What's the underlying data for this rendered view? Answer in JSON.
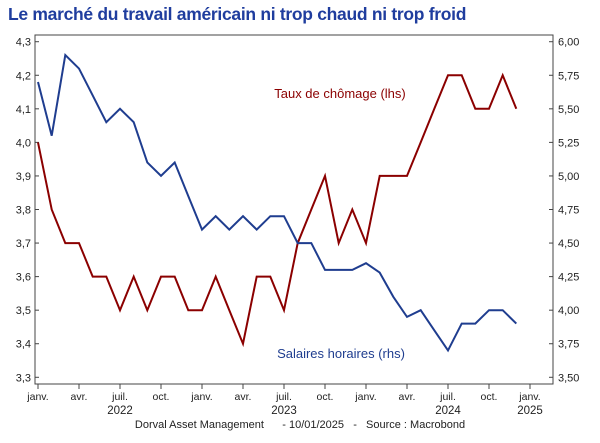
{
  "chart_data": {
    "type": "line",
    "title": "Le marché du travail américain ni trop chaud ni trop froid",
    "source_note": "Dorval Asset Management      - 10/01/2025   -   Source : Macrobond",
    "grid": false,
    "x_ticks": [
      {
        "date": "2022-01",
        "label": "janv.",
        "year": ""
      },
      {
        "date": "2022-04",
        "label": "avr.",
        "year": ""
      },
      {
        "date": "2022-07",
        "label": "juil.",
        "year": "2022"
      },
      {
        "date": "2022-10",
        "label": "oct.",
        "year": ""
      },
      {
        "date": "2023-01",
        "label": "janv.",
        "year": ""
      },
      {
        "date": "2023-04",
        "label": "avr.",
        "year": ""
      },
      {
        "date": "2023-07",
        "label": "juil.",
        "year": "2023"
      },
      {
        "date": "2023-10",
        "label": "oct.",
        "year": ""
      },
      {
        "date": "2024-01",
        "label": "janv.",
        "year": ""
      },
      {
        "date": "2024-04",
        "label": "avr.",
        "year": ""
      },
      {
        "date": "2024-07",
        "label": "juil.",
        "year": "2024"
      },
      {
        "date": "2024-10",
        "label": "oct.",
        "year": ""
      },
      {
        "date": "2025-01",
        "label": "janv.",
        "year": "2025"
      }
    ],
    "y_left": {
      "min": 3.28,
      "max": 4.32,
      "ticks": [
        3.3,
        3.4,
        3.5,
        3.6,
        3.7,
        3.8,
        3.9,
        4.0,
        4.1,
        4.2,
        4.3
      ],
      "labels": [
        "3,3",
        "3,4",
        "3,5",
        "3,6",
        "3,7",
        "3,8",
        "3,9",
        "4,0",
        "4,1",
        "4,2",
        "4,3"
      ]
    },
    "y_right": {
      "min": 3.45,
      "max": 6.05,
      "ticks": [
        3.5,
        3.75,
        4.0,
        4.25,
        4.5,
        4.75,
        5.0,
        5.25,
        5.5,
        5.75,
        6.0
      ],
      "labels": [
        "3,50",
        "3,75",
        "4,00",
        "4,25",
        "4,50",
        "4,75",
        "5,00",
        "5,25",
        "5,50",
        "5,75",
        "6,00"
      ]
    },
    "series": [
      {
        "name": "Taux de chômage (lhs)",
        "axis": "left",
        "color": "#8b0000",
        "x": [
          "2022-01",
          "2022-02",
          "2022-03",
          "2022-04",
          "2022-05",
          "2022-06",
          "2022-07",
          "2022-08",
          "2022-09",
          "2022-10",
          "2022-11",
          "2022-12",
          "2023-01",
          "2023-02",
          "2023-03",
          "2023-04",
          "2023-05",
          "2023-06",
          "2023-07",
          "2023-08",
          "2023-09",
          "2023-10",
          "2023-11",
          "2023-12",
          "2024-01",
          "2024-02",
          "2024-03",
          "2024-04",
          "2024-05",
          "2024-06",
          "2024-07",
          "2024-08",
          "2024-09",
          "2024-10",
          "2024-11",
          "2024-12"
        ],
        "values": [
          4.0,
          3.8,
          3.7,
          3.7,
          3.6,
          3.6,
          3.5,
          3.6,
          3.5,
          3.6,
          3.6,
          3.5,
          3.5,
          3.6,
          3.5,
          3.4,
          3.6,
          3.6,
          3.5,
          3.7,
          3.8,
          3.9,
          3.7,
          3.8,
          3.7,
          3.9,
          3.9,
          3.9,
          4.0,
          4.1,
          4.2,
          4.2,
          4.1,
          4.1,
          4.2,
          4.1
        ]
      },
      {
        "name": "Salaires horaires (rhs)",
        "axis": "right",
        "color": "#1f3d8f",
        "x": [
          "2022-01",
          "2022-02",
          "2022-03",
          "2022-04",
          "2022-05",
          "2022-06",
          "2022-07",
          "2022-08",
          "2022-09",
          "2022-10",
          "2022-11",
          "2022-12",
          "2023-01",
          "2023-02",
          "2023-03",
          "2023-04",
          "2023-05",
          "2023-06",
          "2023-07",
          "2023-08",
          "2023-09",
          "2023-10",
          "2023-11",
          "2023-12",
          "2024-01",
          "2024-02",
          "2024-03",
          "2024-04",
          "2024-05",
          "2024-06",
          "2024-07",
          "2024-08",
          "2024-09",
          "2024-10",
          "2024-11",
          "2024-12"
        ],
        "values": [
          5.7,
          5.3,
          5.9,
          5.8,
          5.6,
          5.4,
          5.5,
          5.4,
          5.1,
          5.0,
          5.1,
          4.85,
          4.6,
          4.7,
          4.6,
          4.7,
          4.6,
          4.7,
          4.7,
          4.5,
          4.5,
          4.3,
          4.3,
          4.3,
          4.35,
          4.28,
          4.1,
          3.95,
          4.0,
          3.85,
          3.7,
          3.9,
          3.9,
          4.0,
          4.0,
          3.9
        ]
      }
    ]
  }
}
